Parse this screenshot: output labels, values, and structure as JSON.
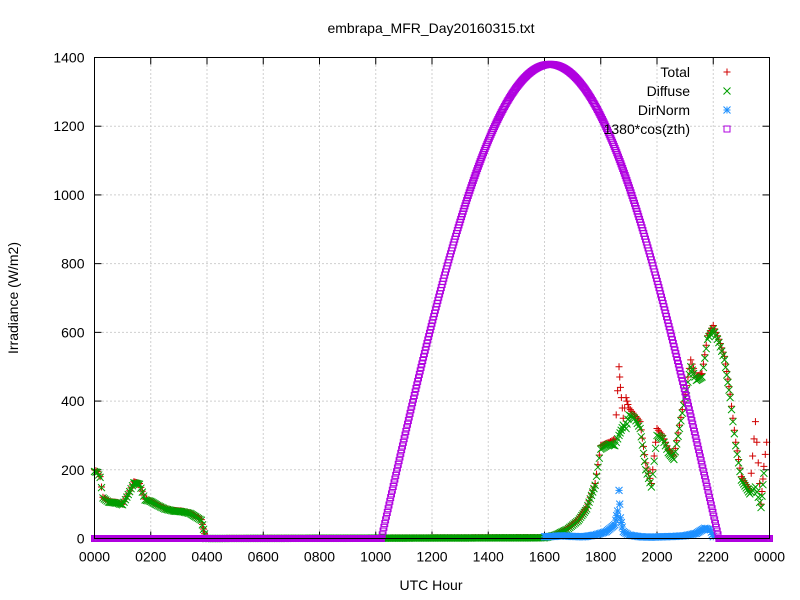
{
  "chart_data": {
    "type": "scatter",
    "title": "embrapa_MFR_Day20160315.txt",
    "xlabel": "UTC Hour",
    "ylabel": "Irradiance (W/m2)",
    "xlim": [
      0,
      24
    ],
    "ylim": [
      0,
      1400
    ],
    "grid": true,
    "legend_position": "top-right",
    "x_ticks": [
      {
        "value": 0,
        "label": "0000"
      },
      {
        "value": 2,
        "label": "0200"
      },
      {
        "value": 4,
        "label": "0400"
      },
      {
        "value": 6,
        "label": "0600"
      },
      {
        "value": 8,
        "label": "0800"
      },
      {
        "value": 10,
        "label": "1000"
      },
      {
        "value": 12,
        "label": "1200"
      },
      {
        "value": 14,
        "label": "1400"
      },
      {
        "value": 16,
        "label": "1600"
      },
      {
        "value": 18,
        "label": "1800"
      },
      {
        "value": 20,
        "label": "2000"
      },
      {
        "value": 22,
        "label": "2200"
      },
      {
        "value": 24,
        "label": "0000"
      }
    ],
    "y_ticks": [
      {
        "value": 0,
        "label": "0"
      },
      {
        "value": 200,
        "label": "200"
      },
      {
        "value": 400,
        "label": "400"
      },
      {
        "value": 600,
        "label": "600"
      },
      {
        "value": 800,
        "label": "800"
      },
      {
        "value": 1000,
        "label": "1000"
      },
      {
        "value": 1200,
        "label": "1200"
      },
      {
        "value": 1400,
        "label": "1400"
      }
    ],
    "series": [
      {
        "name": "Total",
        "marker": "plus",
        "color": "#d00000",
        "points": [
          [
            0,
            200
          ],
          [
            0.1,
            195
          ],
          [
            0.2,
            180
          ],
          [
            0.3,
            120
          ],
          [
            0.5,
            108
          ],
          [
            0.8,
            105
          ],
          [
            1.0,
            100
          ],
          [
            1.2,
            130
          ],
          [
            1.4,
            165
          ],
          [
            1.6,
            160
          ],
          [
            1.8,
            115
          ],
          [
            2.0,
            110
          ],
          [
            2.2,
            100
          ],
          [
            2.5,
            88
          ],
          [
            2.8,
            82
          ],
          [
            3.1,
            80
          ],
          [
            3.4,
            75
          ],
          [
            3.6,
            65
          ],
          [
            3.8,
            55
          ],
          [
            3.95,
            0
          ],
          [
            16.0,
            3
          ],
          [
            16.4,
            12
          ],
          [
            16.8,
            28
          ],
          [
            17.2,
            55
          ],
          [
            17.5,
            90
          ],
          [
            17.8,
            160
          ],
          [
            18.0,
            270
          ],
          [
            18.3,
            280
          ],
          [
            18.5,
            290
          ],
          [
            18.65,
            500
          ],
          [
            18.7,
            440
          ],
          [
            18.8,
            350
          ],
          [
            18.9,
            410
          ],
          [
            19.0,
            380
          ],
          [
            19.2,
            360
          ],
          [
            19.4,
            340
          ],
          [
            19.6,
            220
          ],
          [
            19.8,
            160
          ],
          [
            20.0,
            320
          ],
          [
            20.2,
            300
          ],
          [
            20.4,
            260
          ],
          [
            20.6,
            240
          ],
          [
            20.8,
            330
          ],
          [
            21.0,
            420
          ],
          [
            21.2,
            520
          ],
          [
            21.4,
            470
          ],
          [
            21.6,
            480
          ],
          [
            21.8,
            590
          ],
          [
            22.0,
            620
          ],
          [
            22.2,
            580
          ],
          [
            22.4,
            530
          ],
          [
            22.6,
            420
          ],
          [
            22.8,
            280
          ],
          [
            23.0,
            180
          ],
          [
            23.3,
            140
          ],
          [
            23.5,
            340
          ],
          [
            23.7,
            100
          ],
          [
            23.8,
            210
          ],
          [
            23.9,
            280
          ]
        ]
      },
      {
        "name": "Diffuse",
        "marker": "cross",
        "color": "#009e00",
        "points": [
          [
            0,
            195
          ],
          [
            0.1,
            192
          ],
          [
            0.2,
            178
          ],
          [
            0.3,
            118
          ],
          [
            0.5,
            106
          ],
          [
            0.8,
            103
          ],
          [
            1.0,
            98
          ],
          [
            1.2,
            128
          ],
          [
            1.4,
            162
          ],
          [
            1.6,
            158
          ],
          [
            1.8,
            112
          ],
          [
            2.0,
            108
          ],
          [
            2.2,
            98
          ],
          [
            2.5,
            86
          ],
          [
            2.8,
            80
          ],
          [
            3.1,
            78
          ],
          [
            3.4,
            73
          ],
          [
            3.6,
            63
          ],
          [
            3.8,
            53
          ],
          [
            3.95,
            0
          ],
          [
            16.0,
            2
          ],
          [
            16.4,
            10
          ],
          [
            16.8,
            26
          ],
          [
            17.2,
            52
          ],
          [
            17.5,
            86
          ],
          [
            17.8,
            155
          ],
          [
            18.0,
            260
          ],
          [
            18.3,
            275
          ],
          [
            18.5,
            270
          ],
          [
            18.65,
            300
          ],
          [
            18.8,
            330
          ],
          [
            18.9,
            320
          ],
          [
            19.0,
            360
          ],
          [
            19.2,
            350
          ],
          [
            19.4,
            320
          ],
          [
            19.6,
            200
          ],
          [
            19.8,
            150
          ],
          [
            20.0,
            300
          ],
          [
            20.2,
            290
          ],
          [
            20.4,
            250
          ],
          [
            20.6,
            230
          ],
          [
            20.8,
            320
          ],
          [
            21.0,
            410
          ],
          [
            21.2,
            500
          ],
          [
            21.4,
            460
          ],
          [
            21.6,
            470
          ],
          [
            21.8,
            580
          ],
          [
            22.0,
            610
          ],
          [
            22.2,
            570
          ],
          [
            22.4,
            520
          ],
          [
            22.6,
            410
          ],
          [
            22.8,
            270
          ],
          [
            23.0,
            170
          ],
          [
            23.3,
            130
          ],
          [
            23.5,
            150
          ],
          [
            23.7,
            90
          ],
          [
            23.8,
            190
          ]
        ]
      },
      {
        "name": "DirNorm",
        "marker": "star",
        "color": "#1e90ff",
        "points": [
          [
            16.0,
            5
          ],
          [
            16.3,
            6
          ],
          [
            16.6,
            8
          ],
          [
            17.0,
            6
          ],
          [
            17.4,
            5
          ],
          [
            17.8,
            10
          ],
          [
            18.2,
            20
          ],
          [
            18.5,
            40
          ],
          [
            18.6,
            80
          ],
          [
            18.65,
            140
          ],
          [
            18.7,
            60
          ],
          [
            18.8,
            20
          ],
          [
            19.0,
            10
          ],
          [
            19.4,
            5
          ],
          [
            19.8,
            4
          ],
          [
            20.2,
            5
          ],
          [
            20.6,
            6
          ],
          [
            21.0,
            8
          ],
          [
            21.4,
            15
          ],
          [
            21.7,
            30
          ],
          [
            21.9,
            25
          ],
          [
            22.0,
            5
          ]
        ]
      },
      {
        "name": "1380*cos(zth)",
        "marker": "square",
        "color": "#b000e0",
        "formula": "1380*cos(zth)",
        "peak": 1380,
        "peak_hour": 16.2,
        "rise_hour": 10.2,
        "set_hour": 22.2
      }
    ]
  }
}
